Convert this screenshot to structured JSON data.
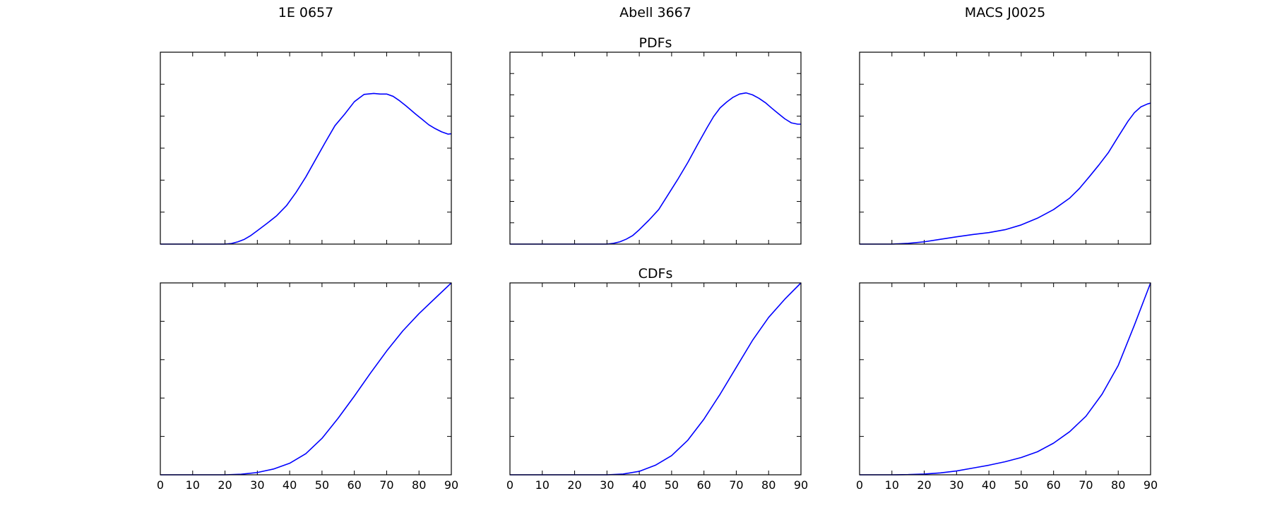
{
  "figure": {
    "column_titles": [
      "1E 0657",
      "Abell 3667",
      "MACS J0025"
    ],
    "row_titles": [
      "PDFs",
      "CDFs"
    ],
    "line_color": "#0000ff",
    "x_ticks": [
      0,
      10,
      20,
      30,
      40,
      50,
      60,
      70,
      80,
      90
    ],
    "x_tick_labels": [
      "0",
      "10",
      "20",
      "30",
      "40",
      "50",
      "60",
      "70",
      "80",
      "90"
    ]
  },
  "chart_data": [
    {
      "type": "line",
      "group": "PDFs",
      "title": "1E 0657",
      "xlim": [
        0,
        90
      ],
      "ylim": [
        0,
        1
      ],
      "x": [
        0,
        5,
        10,
        15,
        20,
        22,
        24,
        26,
        28,
        30,
        33,
        36,
        39,
        42,
        45,
        48,
        51,
        54,
        57,
        60,
        63,
        66,
        68,
        70,
        72,
        74,
        76,
        79,
        81,
        83,
        85,
        87,
        89,
        90
      ],
      "values": [
        0,
        0,
        0,
        0,
        0,
        0.003,
        0.012,
        0.025,
        0.045,
        0.07,
        0.108,
        0.148,
        0.2,
        0.27,
        0.35,
        0.44,
        0.53,
        0.617,
        0.677,
        0.742,
        0.78,
        0.785,
        0.782,
        0.782,
        0.77,
        0.747,
        0.72,
        0.677,
        0.65,
        0.622,
        0.602,
        0.585,
        0.573,
        0.575
      ],
      "grid": false
    },
    {
      "type": "line",
      "group": "PDFs",
      "title": "Abell 3667",
      "xlim": [
        0,
        90
      ],
      "ylim": [
        0,
        1
      ],
      "x": [
        0,
        10,
        20,
        30,
        32,
        34,
        36,
        38,
        40,
        43,
        46,
        49,
        52,
        55,
        58,
        61,
        63,
        65,
        67,
        69,
        71,
        73,
        75,
        77,
        79,
        81,
        83,
        85,
        87,
        89,
        90
      ],
      "values": [
        0,
        0,
        0,
        0,
        0.004,
        0.012,
        0.026,
        0.045,
        0.075,
        0.125,
        0.18,
        0.26,
        0.34,
        0.425,
        0.518,
        0.608,
        0.665,
        0.71,
        0.74,
        0.765,
        0.782,
        0.788,
        0.778,
        0.76,
        0.737,
        0.708,
        0.68,
        0.653,
        0.632,
        0.625,
        0.625
      ],
      "grid": false
    },
    {
      "type": "line",
      "group": "PDFs",
      "title": "MACS J0025",
      "xlim": [
        0,
        90
      ],
      "ylim": [
        0,
        1
      ],
      "x": [
        0,
        10,
        15,
        20,
        25,
        30,
        35,
        40,
        45,
        50,
        55,
        60,
        65,
        68,
        71,
        74,
        77,
        80,
        83,
        85,
        87,
        89,
        90
      ],
      "values": [
        0,
        0,
        0.004,
        0.012,
        0.025,
        0.038,
        0.05,
        0.06,
        0.075,
        0.1,
        0.135,
        0.18,
        0.24,
        0.29,
        0.35,
        0.412,
        0.478,
        0.56,
        0.64,
        0.685,
        0.715,
        0.73,
        0.735
      ],
      "grid": false
    },
    {
      "type": "line",
      "group": "CDFs",
      "title": "1E 0657",
      "xlim": [
        0,
        90
      ],
      "ylim": [
        0,
        1
      ],
      "x": [
        0,
        10,
        20,
        25,
        30,
        35,
        40,
        45,
        50,
        55,
        60,
        65,
        70,
        75,
        80,
        85,
        90
      ],
      "values": [
        0,
        0,
        0,
        0.003,
        0.012,
        0.03,
        0.06,
        0.11,
        0.19,
        0.295,
        0.41,
        0.53,
        0.645,
        0.75,
        0.84,
        0.92,
        1.0
      ],
      "grid": false
    },
    {
      "type": "line",
      "group": "CDFs",
      "title": "Abell 3667",
      "xlim": [
        0,
        90
      ],
      "ylim": [
        0,
        1
      ],
      "x": [
        0,
        10,
        20,
        30,
        35,
        40,
        45,
        50,
        55,
        60,
        65,
        70,
        75,
        80,
        85,
        90
      ],
      "values": [
        0,
        0,
        0,
        0,
        0.004,
        0.018,
        0.05,
        0.1,
        0.18,
        0.29,
        0.42,
        0.56,
        0.7,
        0.82,
        0.915,
        1.0
      ],
      "grid": false
    },
    {
      "type": "line",
      "group": "CDFs",
      "title": "MACS J0025",
      "xlim": [
        0,
        90
      ],
      "ylim": [
        0,
        1
      ],
      "x": [
        0,
        10,
        15,
        20,
        25,
        30,
        35,
        40,
        45,
        50,
        55,
        60,
        65,
        70,
        75,
        80,
        85,
        90
      ],
      "values": [
        0,
        0,
        0.001,
        0.004,
        0.01,
        0.02,
        0.035,
        0.05,
        0.068,
        0.09,
        0.12,
        0.165,
        0.225,
        0.305,
        0.42,
        0.57,
        0.78,
        1.0
      ],
      "grid": false
    }
  ]
}
